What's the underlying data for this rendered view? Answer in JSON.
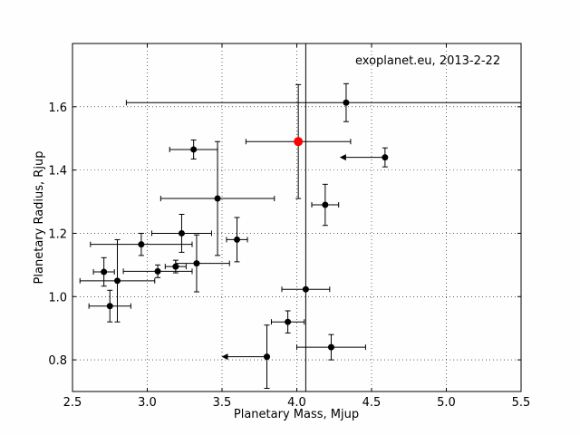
{
  "chart_data": {
    "type": "scatter",
    "annotation": "exoplanet.eu, 2013-2-22",
    "xlabel": "Planetary Mass, Mjup",
    "ylabel": "Planetary Radius, Rjup",
    "xlim": [
      2.5,
      5.5
    ],
    "ylim": [
      0.7,
      1.8
    ],
    "xticks": [
      "2.5",
      "3.0",
      "3.5",
      "4.0",
      "4.5",
      "5.0",
      "5.5"
    ],
    "yticks": [
      "0.8",
      "1.0",
      "1.2",
      "1.4",
      "1.6"
    ],
    "xtick_values": [
      2.5,
      3.0,
      3.5,
      4.0,
      4.5,
      5.0,
      5.5
    ],
    "ytick_values": [
      0.8,
      1.0,
      1.2,
      1.4,
      1.6
    ],
    "grid": true,
    "reference_line_x": 4.06,
    "highlight_color": "#ff0000",
    "point_color": "#000000",
    "points": [
      {
        "x": 4.33,
        "y": 1.613,
        "xerr": [
          1.47,
          1.17
        ],
        "yerr": [
          0.06,
          0.06
        ]
      },
      {
        "x": 4.01,
        "y": 1.49,
        "xerr": [
          0.35,
          0.35
        ],
        "yerr": [
          0.18,
          0.18
        ],
        "highlight": true
      },
      {
        "x": 3.31,
        "y": 1.465,
        "xerr": [
          0.16,
          0.16
        ],
        "yerr": [
          0.03,
          0.03
        ]
      },
      {
        "x": 4.59,
        "y": 1.44,
        "xerr": [
          0.0,
          0.0
        ],
        "yerr": [
          0.03,
          0.03
        ],
        "upper_limit_x": true
      },
      {
        "x": 3.47,
        "y": 1.31,
        "xerr": [
          0.38,
          0.38
        ],
        "yerr": [
          0.18,
          0.18
        ]
      },
      {
        "x": 4.19,
        "y": 1.29,
        "xerr": [
          0.09,
          0.09
        ],
        "yerr": [
          0.065,
          0.065
        ]
      },
      {
        "x": 3.23,
        "y": 1.2,
        "xerr": [
          0.2,
          0.2
        ],
        "yerr": [
          0.06,
          0.06
        ]
      },
      {
        "x": 3.6,
        "y": 1.18,
        "xerr": [
          0.07,
          0.07
        ],
        "yerr": [
          0.07,
          0.07
        ]
      },
      {
        "x": 2.96,
        "y": 1.165,
        "xerr": [
          0.34,
          0.34
        ],
        "yerr": [
          0.035,
          0.035
        ]
      },
      {
        "x": 3.33,
        "y": 1.105,
        "xerr": [
          0.14,
          0.22
        ],
        "yerr": [
          0.09,
          0.09
        ]
      },
      {
        "x": 3.19,
        "y": 1.095,
        "xerr": [
          0.07,
          0.07
        ],
        "yerr": [
          0.02,
          0.02
        ]
      },
      {
        "x": 2.71,
        "y": 1.078,
        "xerr": [
          0.07,
          0.07
        ],
        "yerr": [
          0.045,
          0.045
        ]
      },
      {
        "x": 3.07,
        "y": 1.08,
        "xerr": [
          0.23,
          0.23
        ],
        "yerr": [
          0.02,
          0.02
        ]
      },
      {
        "x": 2.8,
        "y": 1.05,
        "xerr": [
          0.25,
          0.25
        ],
        "yerr": [
          0.13,
          0.13
        ]
      },
      {
        "x": 4.06,
        "y": 1.023,
        "xerr": [
          0.16,
          0.16
        ],
        "yerr": [
          0.0,
          0.0
        ]
      },
      {
        "x": 2.75,
        "y": 0.97,
        "xerr": [
          0.14,
          0.14
        ],
        "yerr": [
          0.05,
          0.05
        ]
      },
      {
        "x": 3.94,
        "y": 0.92,
        "xerr": [
          0.11,
          0.11
        ],
        "yerr": [
          0.035,
          0.035
        ]
      },
      {
        "x": 4.23,
        "y": 0.84,
        "xerr": [
          0.23,
          0.23
        ],
        "yerr": [
          0.04,
          0.04
        ]
      },
      {
        "x": 3.8,
        "y": 0.81,
        "xerr": [
          0.0,
          0.0
        ],
        "yerr": [
          0.1,
          0.1
        ],
        "upper_limit_x": true
      }
    ]
  }
}
